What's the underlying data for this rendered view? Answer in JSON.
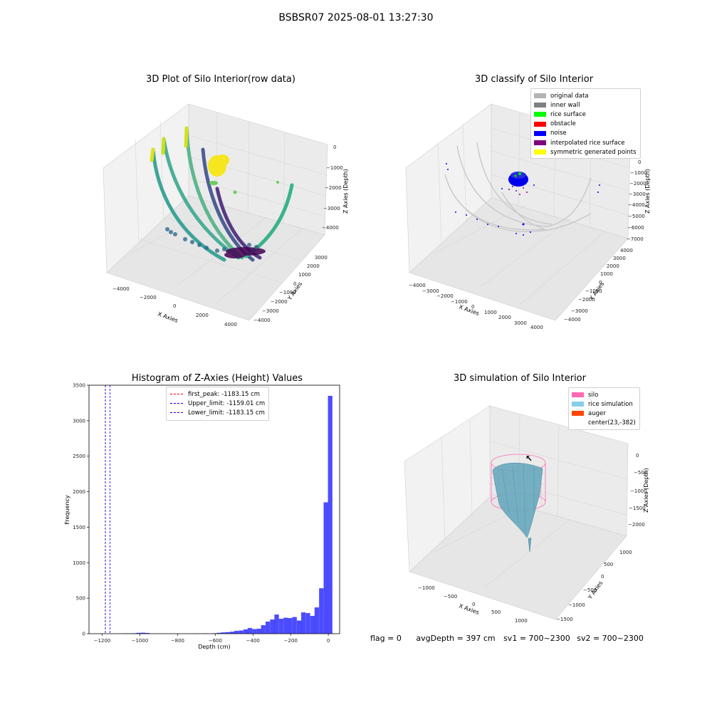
{
  "figure_title": "BSBSR07 2025-08-01 13:27:30",
  "panels": {
    "raw": {
      "title": "3D Plot of Silo Interior(row data)",
      "xlabel": "X Axies",
      "ylabel": "Y Axies",
      "zlabel": "Z Axies (Depth)",
      "xticks": [
        "−4000",
        "−2000",
        "0",
        "2000",
        "4000"
      ],
      "yticks": [
        "−4000",
        "−3000",
        "−2000",
        "−1000",
        "0",
        "1000",
        "2000",
        "3000"
      ],
      "zticks": [
        "−4000",
        "−3000",
        "−2000",
        "−1000",
        "0"
      ]
    },
    "classify": {
      "title": "3D classify of Silo Interior",
      "xlabel": "X Axies",
      "ylabel": "Y Axies",
      "zlabel": "Z Axies (Depth)",
      "xticks": [
        "−4000",
        "−3000",
        "−2000",
        "−1000",
        "0",
        "1000",
        "2000",
        "3000",
        "4000"
      ],
      "yticks": [
        "−4000",
        "−3000",
        "−2000",
        "−1000",
        "0",
        "1000",
        "2000",
        "3000",
        "4000"
      ],
      "zticks": [
        "−7000",
        "−6000",
        "−5000",
        "−4000",
        "−3000",
        "−2000",
        "−1000",
        "0"
      ],
      "legend": [
        {
          "label": "original data",
          "color": "#b3b3b3"
        },
        {
          "label": "inner wall",
          "color": "#808080"
        },
        {
          "label": "rice surface",
          "color": "#00ff00"
        },
        {
          "label": "obstacle",
          "color": "#ff0000"
        },
        {
          "label": "noise",
          "color": "#0000ff"
        },
        {
          "label": "interpolated rice surface",
          "color": "#800080"
        },
        {
          "label": "symmetric generated points",
          "color": "#ffff00"
        }
      ]
    },
    "simulation": {
      "title": "3D simulation of Silo Interior",
      "xlabel": "X Axies",
      "ylabel": "Y Axies",
      "zlabel": "Z Axies (Depth)",
      "xticks": [
        "−1000",
        "−500",
        "0",
        "500",
        "1000"
      ],
      "yticks": [
        "−1500",
        "−1000",
        "−500",
        "0",
        "500",
        "1000"
      ],
      "zticks": [
        "−2000",
        "−1500",
        "−1000",
        "−500",
        "0"
      ],
      "legend": [
        {
          "label": "silo",
          "color": "#ff69b4"
        },
        {
          "label": "rice simulation",
          "color": "#87ceeb"
        },
        {
          "label": "auger",
          "color": "#ff4500"
        },
        {
          "label": "center(23,-382)",
          "color": ""
        }
      ]
    }
  },
  "chart_data": {
    "type": "bar",
    "title": "Histogram of Z-Axies (Height) Values",
    "xlabel": "Depth (cm)",
    "ylabel": "Frequency",
    "xlim": [
      -1270,
      60
    ],
    "ylim": [
      0,
      3500
    ],
    "xticks": [
      -1200,
      -1000,
      -800,
      -600,
      -400,
      -200,
      0
    ],
    "yticks": [
      0,
      500,
      1000,
      1500,
      2000,
      2500,
      3000,
      3500
    ],
    "bar_color": "#0000ff",
    "bin_width": 23.7,
    "bins": [
      {
        "x": -1090,
        "count": 4
      },
      {
        "x": -1066,
        "count": 5
      },
      {
        "x": -1043,
        "count": 6
      },
      {
        "x": -1019,
        "count": 12
      },
      {
        "x": -995,
        "count": 14
      },
      {
        "x": -972,
        "count": 10
      },
      {
        "x": -712,
        "count": 3
      },
      {
        "x": -665,
        "count": 4
      },
      {
        "x": -617,
        "count": 6
      },
      {
        "x": -593,
        "count": 12
      },
      {
        "x": -570,
        "count": 18
      },
      {
        "x": -546,
        "count": 22
      },
      {
        "x": -522,
        "count": 28
      },
      {
        "x": -499,
        "count": 40
      },
      {
        "x": -475,
        "count": 45
      },
      {
        "x": -451,
        "count": 60
      },
      {
        "x": -428,
        "count": 80
      },
      {
        "x": -404,
        "count": 65
      },
      {
        "x": -380,
        "count": 70
      },
      {
        "x": -357,
        "count": 120
      },
      {
        "x": -333,
        "count": 170
      },
      {
        "x": -309,
        "count": 200
      },
      {
        "x": -286,
        "count": 270
      },
      {
        "x": -262,
        "count": 210
      },
      {
        "x": -238,
        "count": 225
      },
      {
        "x": -215,
        "count": 220
      },
      {
        "x": -191,
        "count": 235
      },
      {
        "x": -167,
        "count": 185
      },
      {
        "x": -144,
        "count": 300
      },
      {
        "x": -120,
        "count": 290
      },
      {
        "x": -96,
        "count": 250
      },
      {
        "x": -73,
        "count": 370
      },
      {
        "x": -49,
        "count": 640
      },
      {
        "x": -25,
        "count": 1850
      },
      {
        "x": -2,
        "count": 3350
      }
    ],
    "lines": [
      {
        "label": "first_peak: -1183.15 cm",
        "x": -1183.15,
        "color": "#ff0000"
      },
      {
        "label": "Upper_limit: -1159.01 cm",
        "x": -1159.01,
        "color": "#0000ff"
      },
      {
        "label": "Lower_limit: -1183.15 cm",
        "x": -1183.15,
        "color": "#0000ff"
      }
    ]
  },
  "footer": {
    "flag": "flag = 0",
    "avg": "avgDepth = 397 cm",
    "sv1": "sv1 = 700~2300",
    "sv2": "sv2 = 700~2300"
  }
}
